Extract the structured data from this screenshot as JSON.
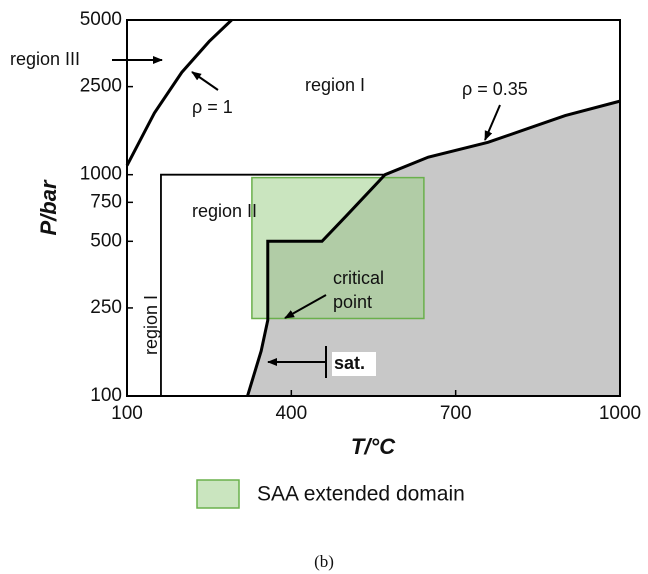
{
  "chart_data": {
    "type": "phase",
    "xlabel": "T/°C",
    "ylabel": "P/bar",
    "xlim": [
      100,
      1000
    ],
    "ylim": [
      100,
      5000
    ],
    "log_y": true,
    "xticks": [
      100,
      400,
      700,
      1000
    ],
    "yticks": [
      100,
      250,
      500,
      750,
      1000,
      2500,
      5000
    ],
    "series": [
      {
        "color": "#000000",
        "x": [
          100,
          150,
          200,
          250,
          291
        ],
        "values": [
          1100,
          1900,
          2900,
          4000,
          5000
        ]
      },
      {
        "color": "#000000",
        "fill": "#c8c8c8",
        "x": [
          320,
          345,
          357,
          357,
          456,
          500,
          571,
          650,
          759,
          900,
          1000
        ],
        "values": [
          100,
          160,
          220,
          500,
          500,
          650,
          1000,
          1200,
          1400,
          1850,
          2150
        ]
      },
      {
        "color": "#000000",
        "x": [
          162,
          162,
          571
        ],
        "values": [
          100,
          1000,
          1000
        ]
      }
    ],
    "domain": {
      "name": "SAA extended domain",
      "color": "#9fd08a",
      "x": [
        328,
        642
      ],
      "values": [
        224,
        970
      ]
    },
    "annotations": [
      "region III",
      "ρ = 1",
      "region I",
      "ρ = 0.35",
      "region II",
      "critical",
      "point",
      "sat.",
      "region I"
    ],
    "caption": "(b)"
  }
}
